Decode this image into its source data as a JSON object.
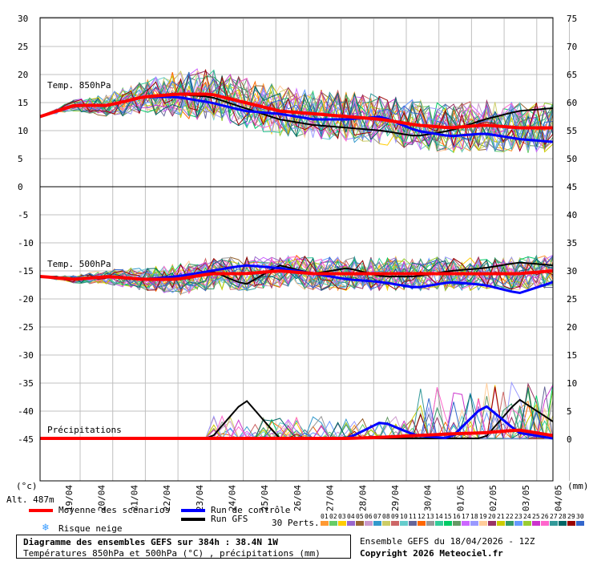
{
  "colors": {
    "mean": "#ff0000",
    "control": "#0000ff",
    "gfs": "#000000",
    "grid": "#c0c0c0"
  },
  "member_colors": [
    "#ff9933",
    "#66cc66",
    "#ffcc00",
    "#9966cc",
    "#996633",
    "#cc99cc",
    "#3399cc",
    "#cccc66",
    "#cc6666",
    "#66cccc",
    "#666699",
    "#ff6600",
    "#999999",
    "#33cc99",
    "#00cc66",
    "#669966",
    "#cc66ff",
    "#9999ff",
    "#ffcc99",
    "#993366",
    "#cccc00",
    "#339966",
    "#6699ff",
    "#99cc33",
    "#cc33cc",
    "#ff66cc",
    "#339999",
    "#006666",
    "#990000",
    "#3366cc"
  ],
  "labels": {
    "t850": "Temp. 850hPa",
    "t500": "Temp. 500hPa",
    "precip": "Précipitations",
    "unit_left": "(°c)",
    "unit_right": "(mm)",
    "alt": "Alt. 487m"
  },
  "legend": {
    "mean": "Moyenne des scénarios",
    "control": "Run de contrôle",
    "gfs": "Run GFS",
    "snow": "Risque neige",
    "perts": "30 Perts."
  },
  "footer": {
    "title": "Diagramme des ensembles GEFS sur 384h : 38.4N 1W",
    "subtitle": "Températures 850hPa et 500hPa (°C) , précipitations (mm)",
    "run": "Ensemble GEFS du 18/04/2026 - 12Z",
    "copyright": "Copyright 2026 Meteociel.fr"
  },
  "chart_data": {
    "type": "line",
    "x_dates": [
      "19/04",
      "20/04",
      "21/04",
      "22/04",
      "23/04",
      "24/04",
      "25/04",
      "26/04",
      "27/04",
      "28/04",
      "29/04",
      "30/04",
      "01/05",
      "02/05",
      "03/05",
      "04/05"
    ],
    "members": 30,
    "left_ticks_upper": [
      "30",
      "25",
      "20",
      "15",
      "10",
      "5",
      "0"
    ],
    "left_ticks_lower": [
      "-5",
      "-10",
      "-15",
      "-20",
      "-25",
      "-30",
      "-35",
      "-40",
      "-45"
    ],
    "right_ticks_upper": [
      "75",
      "70",
      "65",
      "60",
      "55",
      "50",
      "45"
    ],
    "right_ticks_lower": [
      "40",
      "35",
      "30",
      "25",
      "20",
      "15",
      "10",
      "5",
      "0"
    ],
    "days_x": [
      0,
      1,
      2,
      3,
      4,
      5,
      6,
      7,
      8,
      9,
      10,
      11,
      12,
      13,
      14,
      15
    ],
    "t850_mean": [
      12.5,
      14.5,
      14.5,
      16,
      16.5,
      16.5,
      15,
      13.5,
      13,
      12.5,
      12,
      11,
      10.5,
      11,
      10.5,
      10.5
    ],
    "t850_control": [
      12.5,
      14.5,
      14.5,
      16,
      16,
      15,
      13.5,
      13,
      12,
      12,
      12.5,
      10,
      9,
      9.5,
      8.5,
      8
    ],
    "t850_gfs": [
      12.5,
      14.5,
      14.5,
      16,
      16.5,
      16,
      14,
      12,
      11,
      10.5,
      10,
      9,
      10,
      12,
      13.5,
      14
    ],
    "t500_mean": [
      -16,
      -16.5,
      -16,
      -16.5,
      -16.5,
      -15.5,
      -15.5,
      -15,
      -15.5,
      -15.5,
      -15.5,
      -15.5,
      -15.5,
      -15.5,
      -15.5,
      -15
    ],
    "t500_control": [
      -16,
      -16.5,
      -16,
      -16.5,
      -16,
      -15,
      -14,
      -14.5,
      -15.5,
      -16.5,
      -17,
      -18,
      -17,
      -17.5,
      -19,
      -17
    ],
    "t500_gfs": [
      -16,
      -16.5,
      -16,
      -16.5,
      -16,
      -15,
      -17.5,
      -14,
      -15.5,
      -14.5,
      -16,
      -16,
      -15,
      -14.5,
      -13.5,
      -14
    ],
    "precip_mean": [
      0,
      0,
      0,
      0,
      0,
      0,
      0,
      0,
      0,
      0,
      0.2,
      0.5,
      0.8,
      1,
      1.5,
      0.5
    ],
    "precip_control": [
      0,
      0,
      0,
      0,
      0,
      0,
      0,
      0,
      0,
      0,
      3,
      0.5,
      0,
      6,
      1,
      0
    ],
    "precip_gfs": [
      0,
      0,
      0,
      0,
      0,
      0,
      7,
      0,
      0,
      0,
      0,
      0,
      0,
      0,
      7,
      3
    ]
  }
}
